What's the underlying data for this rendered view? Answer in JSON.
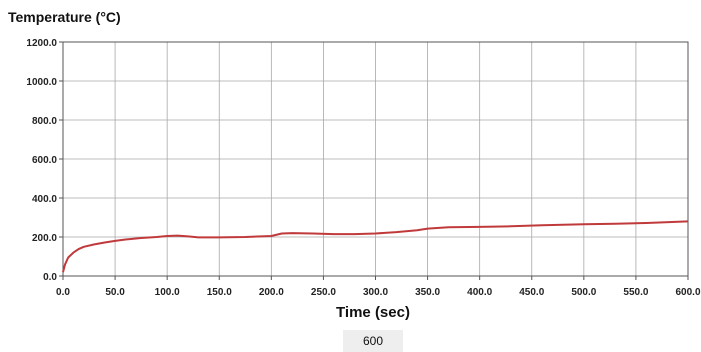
{
  "colors": {
    "line": "#c0393b",
    "grid": "#a8a8a8",
    "frame": "#555555",
    "background": "#ffffff"
  },
  "readout": {
    "value": "600"
  },
  "chart_data": {
    "type": "line",
    "title": "",
    "ylabel": "Temperature (°C)",
    "xlabel": "Time (sec)",
    "xlim": [
      0,
      600
    ],
    "ylim": [
      0,
      1200
    ],
    "grid": true,
    "legend": "none",
    "x_ticks": [
      "0.0",
      "50.0",
      "100.0",
      "150.0",
      "200.0",
      "250.0",
      "300.0",
      "350.0",
      "400.0",
      "450.0",
      "500.0",
      "550.0",
      "600.0"
    ],
    "y_ticks": [
      "0.0",
      "200.0",
      "400.0",
      "600.0",
      "800.0",
      "1000.0",
      "1200.0"
    ],
    "x_tick_values": [
      0,
      50,
      100,
      150,
      200,
      250,
      300,
      350,
      400,
      450,
      500,
      550,
      600
    ],
    "y_tick_values": [
      0,
      200,
      400,
      600,
      800,
      1000,
      1200
    ],
    "series": [
      {
        "x": [
          0,
          2,
          5,
          10,
          15,
          20,
          30,
          40,
          50,
          60,
          75,
          90,
          100,
          110,
          120,
          130,
          150,
          175,
          200,
          210,
          220,
          240,
          260,
          280,
          300,
          320,
          340,
          350,
          370,
          400,
          430,
          460,
          500,
          530,
          560,
          600
        ],
        "y": [
          20,
          60,
          95,
          120,
          138,
          150,
          162,
          172,
          180,
          187,
          195,
          200,
          205,
          207,
          203,
          198,
          198,
          200,
          205,
          218,
          220,
          218,
          215,
          215,
          218,
          225,
          235,
          243,
          250,
          252,
          255,
          260,
          265,
          268,
          272,
          280
        ]
      }
    ]
  }
}
